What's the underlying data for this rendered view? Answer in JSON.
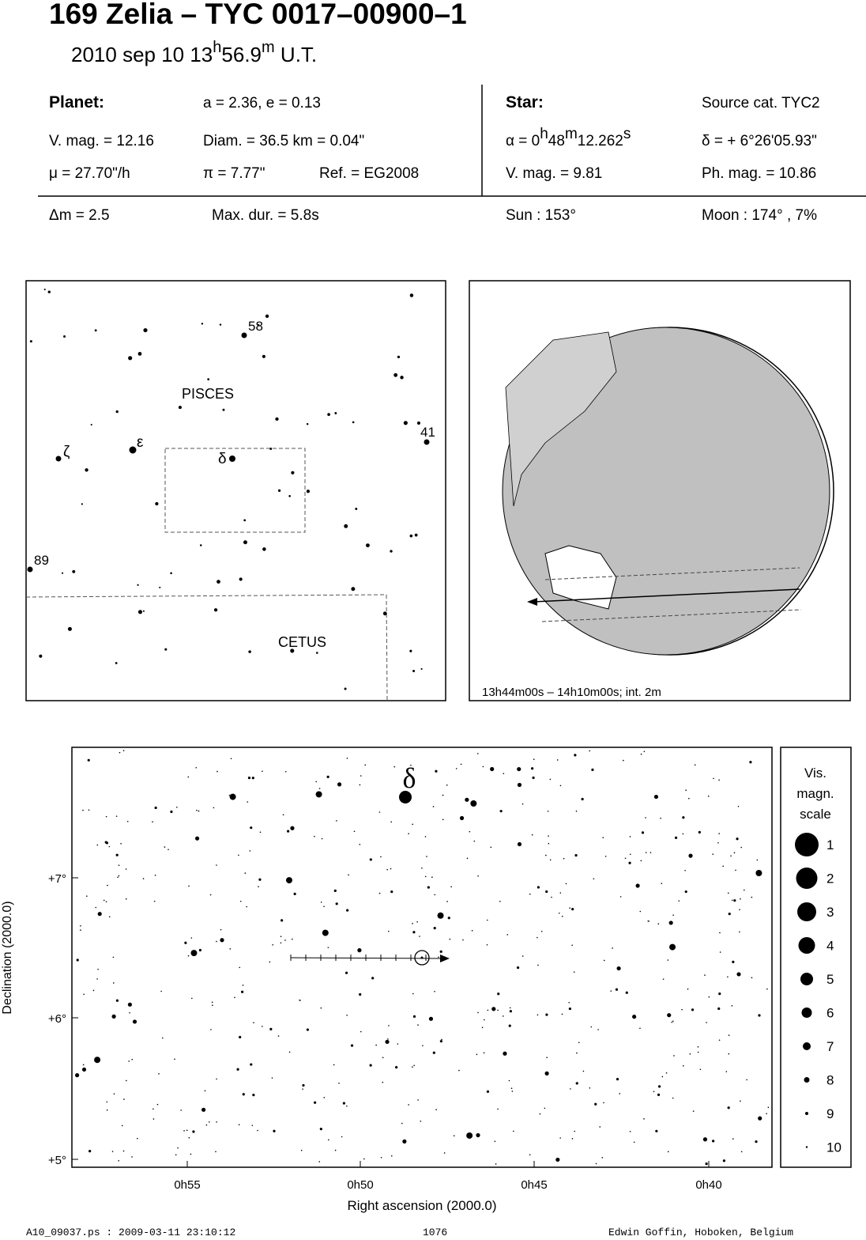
{
  "header": {
    "title": "169 Zelia  –  TYC 0017–00900–1",
    "subtitle": [
      "2010 sep 10  13",
      "h",
      "56.9",
      "m",
      " U.T."
    ]
  },
  "planet": {
    "label": "Planet:",
    "orbit": "a = 2.36, e = 0.13",
    "vmag": "V. mag. = 12.16",
    "diam": "Diam. = 36.5 km = 0.04\"",
    "motion": "μ =  27.70\"/h",
    "parallax": "π =  7.77\"",
    "ref": "Ref. = EG2008"
  },
  "star": {
    "label": "Star:",
    "source": "Source cat.  TYC2",
    "ra": [
      "α =  0",
      "h",
      "48",
      "m",
      "12.262",
      "s"
    ],
    "dec": "δ = + 6°26'05.93\"",
    "vmag": "V. mag. =  9.81",
    "phmag": "Ph. mag. = 10.86"
  },
  "event": {
    "dm": "Δm = 2.5",
    "maxdur": "Max. dur. = 5.8s",
    "sun": "Sun : 153°",
    "moon": "Moon : 174° ,  7%"
  },
  "finder": {
    "labels": [
      "58",
      "PISCES",
      "41",
      "ζ",
      "ε",
      "δ",
      "89",
      "CETUS"
    ]
  },
  "globe": {
    "caption": "13h44m00s – 14h10m00s; int.  2m"
  },
  "detail": {
    "star_label": "δ",
    "yticks": [
      "+7°",
      "+6°",
      "+5°"
    ],
    "xticks": [
      "0h55",
      "0h50",
      "0h45",
      "0h40"
    ],
    "xlabel": "Right ascension (2000.0)",
    "ylabel": "Declination (2000.0)"
  },
  "scale": {
    "title": [
      "Vis.",
      "magn.",
      "scale"
    ],
    "levels": [
      "1",
      "2",
      "3",
      "4",
      "5",
      "6",
      "7",
      "8",
      "9",
      "10"
    ]
  },
  "footer": {
    "file": "A10_09037.ps : 2009-03-11 23:10:12",
    "page": "1076",
    "author": "Edwin Goffin, Hoboken, Belgium"
  }
}
